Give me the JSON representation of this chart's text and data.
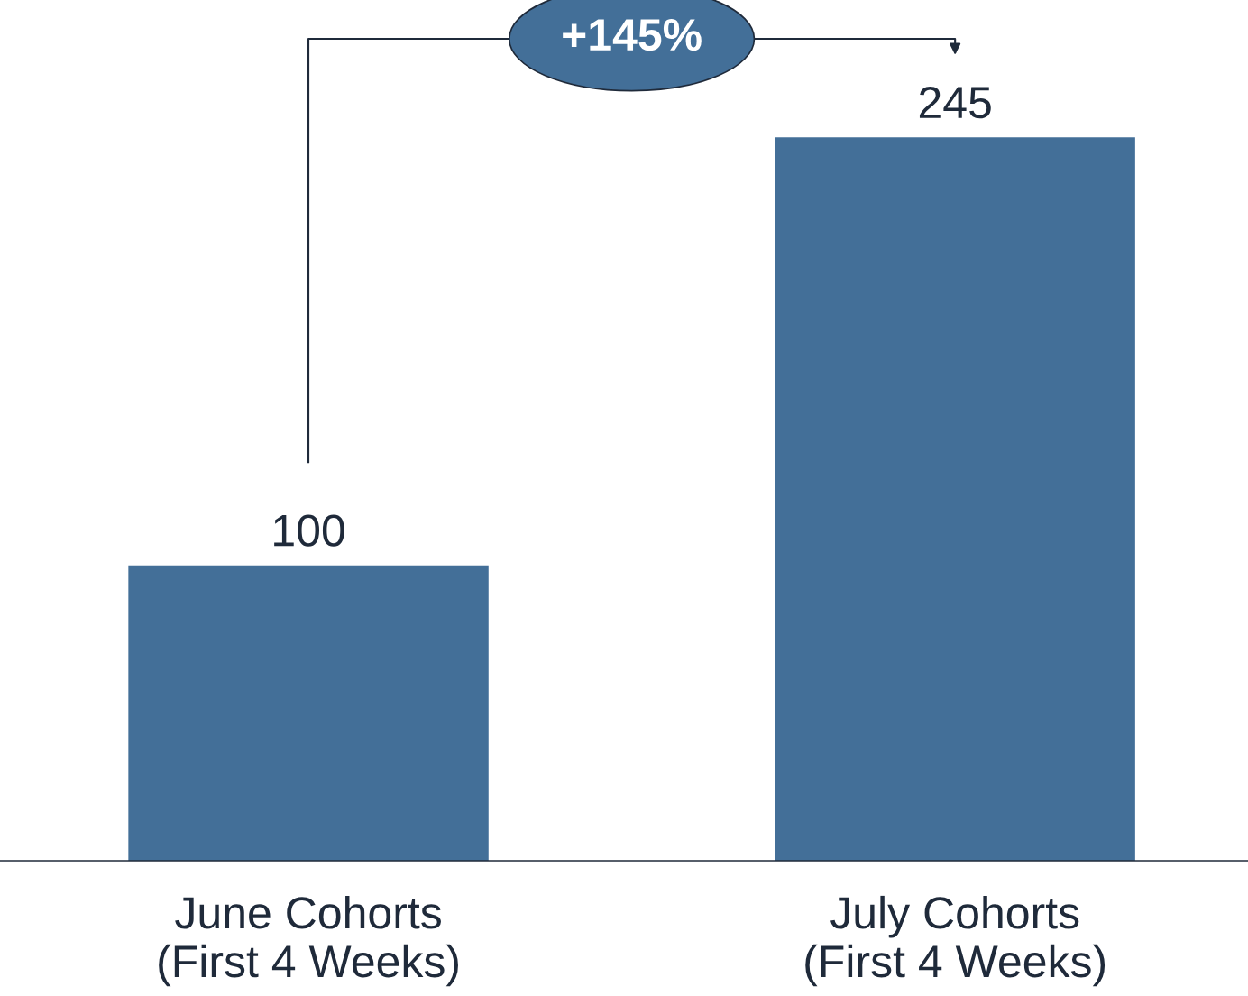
{
  "chart_data": {
    "type": "bar",
    "categories": [
      "June Cohorts\n(First 4 Weeks)",
      "July Cohorts\n(First 4 Weeks)"
    ],
    "values": [
      100,
      245
    ],
    "color": "#436f98",
    "data_labels": true,
    "tick_labels": "x",
    "grid": false,
    "legend": false,
    "annotations": [
      "+145%"
    ]
  }
}
